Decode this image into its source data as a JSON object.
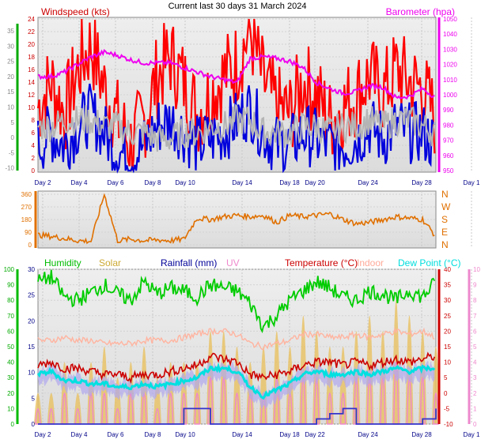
{
  "chart_data": [
    {
      "type": "line",
      "title": "Current last 30 days 31 March 2024",
      "left_label": "Windspeed (kts)",
      "right_label": "Barometer (hpa)",
      "x_ticks": [
        "Day 2",
        "Day 4",
        "Day 6",
        "Day 8",
        "Day 10",
        "Day 14",
        "Day 18",
        "Day 20",
        "Day 24",
        "Day 28",
        "Day 1"
      ],
      "left_axis_outer": [
        "35",
        "30",
        "25",
        "20",
        "15",
        "10",
        "5",
        "0",
        "-5",
        "-10"
      ],
      "left_axis_inner": [
        "24",
        "22",
        "20",
        "18",
        "16",
        "14",
        "12",
        "10",
        "8",
        "6",
        "4",
        "2",
        "0"
      ],
      "right_axis": [
        "1050",
        "1040",
        "1030",
        "1020",
        "1010",
        "1000",
        "990",
        "980",
        "970",
        "960",
        "950"
      ],
      "ylim_kts": [
        0,
        24
      ],
      "ylim_hpa": [
        950,
        1050
      ],
      "series": [
        {
          "name": "Windspeed",
          "color": "#ff0000",
          "x": [
            1,
            2,
            3,
            4,
            5,
            6,
            7,
            8,
            9,
            10,
            11,
            12,
            13,
            14,
            15,
            16,
            17,
            18,
            19,
            20,
            21,
            22,
            23,
            24,
            25,
            26,
            27,
            28,
            29,
            30,
            31
          ],
          "values": [
            10,
            14,
            9,
            16,
            20,
            13,
            8,
            4,
            8,
            15,
            18,
            14,
            9,
            12,
            15,
            17,
            22,
            14,
            10,
            9,
            14,
            12,
            8,
            10,
            12,
            15,
            12,
            16,
            14,
            13,
            8
          ]
        },
        {
          "name": "Windspeed",
          "color": "#0000dd",
          "x": [
            1,
            2,
            3,
            4,
            5,
            6,
            7,
            8,
            9,
            10,
            11,
            12,
            13,
            14,
            15,
            16,
            17,
            18,
            19,
            20,
            21,
            22,
            23,
            24,
            25,
            26,
            27,
            28,
            29,
            30,
            31
          ],
          "values": [
            4,
            6,
            4,
            7,
            9,
            6,
            3,
            2,
            4,
            7,
            8,
            6,
            4,
            5,
            6,
            8,
            10,
            6,
            4,
            4,
            6,
            5,
            4,
            4,
            5,
            7,
            5,
            7,
            6,
            6,
            4
          ]
        },
        {
          "name": "Windspeed",
          "color": "#b4b4b4",
          "x": [
            1,
            2,
            3,
            4,
            5,
            6,
            7,
            8,
            9,
            10,
            11,
            12,
            13,
            14,
            15,
            16,
            17,
            18,
            19,
            20,
            21,
            22,
            23,
            24,
            25,
            26,
            27,
            28,
            29,
            30,
            31
          ],
          "values": [
            7,
            7,
            8,
            8,
            8,
            7,
            7,
            6,
            6,
            5,
            5,
            6,
            6,
            7,
            7,
            8,
            8,
            6,
            6,
            6,
            7,
            7,
            6,
            7,
            7,
            8,
            7,
            8,
            8,
            7,
            6
          ]
        },
        {
          "name": "Barometer",
          "color": "#ee00ee",
          "axis": "right",
          "x": [
            1,
            2,
            3,
            4,
            5,
            6,
            7,
            8,
            9,
            10,
            11,
            12,
            13,
            14,
            15,
            16,
            17,
            18,
            19,
            20,
            21,
            22,
            23,
            24,
            25,
            26,
            27,
            28,
            29,
            30,
            31
          ],
          "values": [
            1012,
            1012,
            1015,
            1020,
            1025,
            1028,
            1026,
            1023,
            1021,
            1021,
            1021,
            1018,
            1015,
            1012,
            1010,
            1008,
            1024,
            1025,
            1024,
            1022,
            1018,
            1008,
            1004,
            1001,
            1002,
            1006,
            1005,
            998,
            999,
            1004,
            998
          ]
        }
      ]
    },
    {
      "type": "line",
      "title": "",
      "y_ticks": [
        "360",
        "270",
        "180",
        "90",
        "0"
      ],
      "right_labels": [
        "N",
        "W",
        "S",
        "E",
        "N"
      ],
      "ylim": [
        0,
        360
      ],
      "series": [
        {
          "name": "Wind direction",
          "color": "#e07000",
          "x": [
            1,
            2,
            3,
            4,
            5,
            6,
            7,
            8,
            9,
            10,
            11,
            12,
            13,
            14,
            15,
            16,
            17,
            18,
            19,
            20,
            21,
            22,
            23,
            24,
            25,
            26,
            27,
            28,
            29,
            30,
            31
          ],
          "values": [
            70,
            60,
            45,
            30,
            25,
            360,
            30,
            40,
            30,
            35,
            30,
            40,
            190,
            180,
            200,
            210,
            200,
            210,
            160,
            210,
            200,
            210,
            220,
            180,
            150,
            160,
            180,
            200,
            190,
            180,
            60
          ]
        }
      ]
    },
    {
      "type": "line",
      "title": "",
      "labels": [
        "Humidity",
        "Solar",
        "Rainfall (mm)",
        "UV",
        "Temperature (°C)",
        "Indoor",
        "Dew Point (°C)"
      ],
      "label_colors": [
        "#00bb00",
        "#ccaa33",
        "#000099",
        "#ee88cc",
        "#cc0000",
        "#ffaa99",
        "#00dddd"
      ],
      "axis_humidity": [
        "100",
        "90",
        "80",
        "70",
        "60",
        "50",
        "40",
        "30",
        "20",
        "10",
        "0"
      ],
      "axis_rain": [
        "30",
        "25",
        "20",
        "15",
        "10",
        "5",
        "0"
      ],
      "axis_temp": [
        "40",
        "35",
        "30",
        "25",
        "20",
        "15",
        "10",
        "5",
        "0",
        "-5",
        "-10"
      ],
      "axis_uv": [
        "10",
        "9",
        "8",
        "7",
        "6",
        "5",
        "4",
        "3",
        "2",
        "1",
        "0"
      ],
      "x_ticks": [
        "Day 2",
        "Day 4",
        "Day 6",
        "Day 8",
        "Day 10",
        "Day 14",
        "Day 18",
        "Day 22",
        "Day 24",
        "Day 28",
        "Day 1"
      ],
      "series": [
        {
          "name": "Humidity",
          "color": "#00cc00",
          "x": [
            1,
            2,
            3,
            4,
            5,
            6,
            7,
            8,
            9,
            10,
            11,
            12,
            13,
            14,
            15,
            16,
            17,
            18,
            19,
            20,
            21,
            22,
            23,
            24,
            25,
            26,
            27,
            28,
            29,
            30,
            31
          ],
          "values": [
            92,
            95,
            82,
            80,
            85,
            90,
            84,
            80,
            92,
            84,
            88,
            86,
            82,
            90,
            88,
            86,
            78,
            63,
            70,
            80,
            86,
            92,
            88,
            82,
            80,
            86,
            84,
            80,
            86,
            82,
            92
          ]
        },
        {
          "name": "Temperature",
          "color": "#cc0000",
          "x": [
            1,
            2,
            3,
            4,
            5,
            6,
            7,
            8,
            9,
            10,
            11,
            12,
            13,
            14,
            15,
            16,
            17,
            18,
            19,
            20,
            21,
            22,
            23,
            24,
            25,
            26,
            27,
            28,
            29,
            30,
            31
          ],
          "values": [
            9,
            10,
            8,
            8,
            7,
            6,
            6,
            5,
            6,
            6,
            7,
            8,
            9,
            12,
            11,
            10,
            6,
            5,
            6,
            7,
            9,
            10,
            10,
            9,
            10,
            9,
            10,
            11,
            10,
            11,
            12
          ]
        },
        {
          "name": "Indoor",
          "color": "#ffb4a0",
          "x": [
            1,
            2,
            3,
            4,
            5,
            6,
            7,
            8,
            9,
            10,
            11,
            12,
            13,
            14,
            15,
            16,
            17,
            18,
            19,
            20,
            21,
            22,
            23,
            24,
            25,
            26,
            27,
            28,
            29,
            30,
            31
          ],
          "values": [
            17,
            17,
            18,
            17,
            17,
            16,
            16,
            16,
            17,
            17,
            17,
            18,
            19,
            20,
            20,
            19,
            16,
            15,
            16,
            17,
            19,
            19,
            18,
            18,
            19,
            18,
            19,
            20,
            19,
            20,
            18
          ]
        },
        {
          "name": "Dew Point",
          "color": "#00e0e0",
          "x": [
            1,
            2,
            3,
            4,
            5,
            6,
            7,
            8,
            9,
            10,
            11,
            12,
            13,
            14,
            15,
            16,
            17,
            18,
            19,
            20,
            21,
            22,
            23,
            24,
            25,
            26,
            27,
            28,
            29,
            30,
            31
          ],
          "values": [
            6,
            7,
            4,
            4,
            3,
            3,
            2,
            2,
            3,
            2,
            3,
            4,
            5,
            8,
            8,
            7,
            2,
            -1,
            1,
            3,
            6,
            7,
            6,
            6,
            7,
            6,
            7,
            8,
            7,
            8,
            8
          ]
        },
        {
          "name": "Rainfall (mm)",
          "color": "#3333cc",
          "x": [
            1,
            2,
            3,
            4,
            5,
            6,
            7,
            8,
            9,
            10,
            11,
            12,
            13,
            14,
            15,
            16,
            17,
            18,
            19,
            20,
            21,
            22,
            23,
            24,
            25,
            26,
            27,
            28,
            29,
            30,
            31
          ],
          "values": [
            0,
            0,
            0,
            0,
            0,
            0,
            0,
            0,
            0,
            0,
            0,
            3,
            3,
            0,
            0,
            0,
            0,
            0,
            0,
            0,
            0,
            1,
            2,
            3,
            0,
            0,
            0,
            0,
            0,
            1,
            3
          ]
        },
        {
          "name": "Solar",
          "color": "#e8c060",
          "x": [
            1,
            2,
            3,
            4,
            5,
            6,
            7,
            8,
            9,
            10,
            11,
            12,
            13,
            14,
            15,
            16,
            17,
            18,
            19,
            20,
            21,
            22,
            23,
            24,
            25,
            26,
            27,
            28,
            29,
            30,
            31
          ],
          "values": [
            2,
            2,
            4,
            2,
            4,
            5,
            3,
            4,
            5,
            3,
            4,
            4,
            4,
            6,
            6,
            5,
            4,
            5,
            6,
            5,
            7,
            6,
            5,
            5,
            6,
            7,
            6,
            8,
            7,
            6,
            5
          ]
        },
        {
          "name": "UV",
          "color": "#ee88cc",
          "x": [
            1,
            2,
            3,
            4,
            5,
            6,
            7,
            8,
            9,
            10,
            11,
            12,
            13,
            14,
            15,
            16,
            17,
            18,
            19,
            20,
            21,
            22,
            23,
            24,
            25,
            26,
            27,
            28,
            29,
            30,
            31
          ],
          "values": [
            1,
            1,
            2,
            1,
            2,
            2,
            1,
            2,
            2,
            1,
            2,
            2,
            2,
            3,
            3,
            2,
            2,
            2,
            3,
            2,
            3,
            3,
            2,
            2,
            3,
            3,
            3,
            4,
            3,
            3,
            2
          ]
        }
      ]
    }
  ]
}
